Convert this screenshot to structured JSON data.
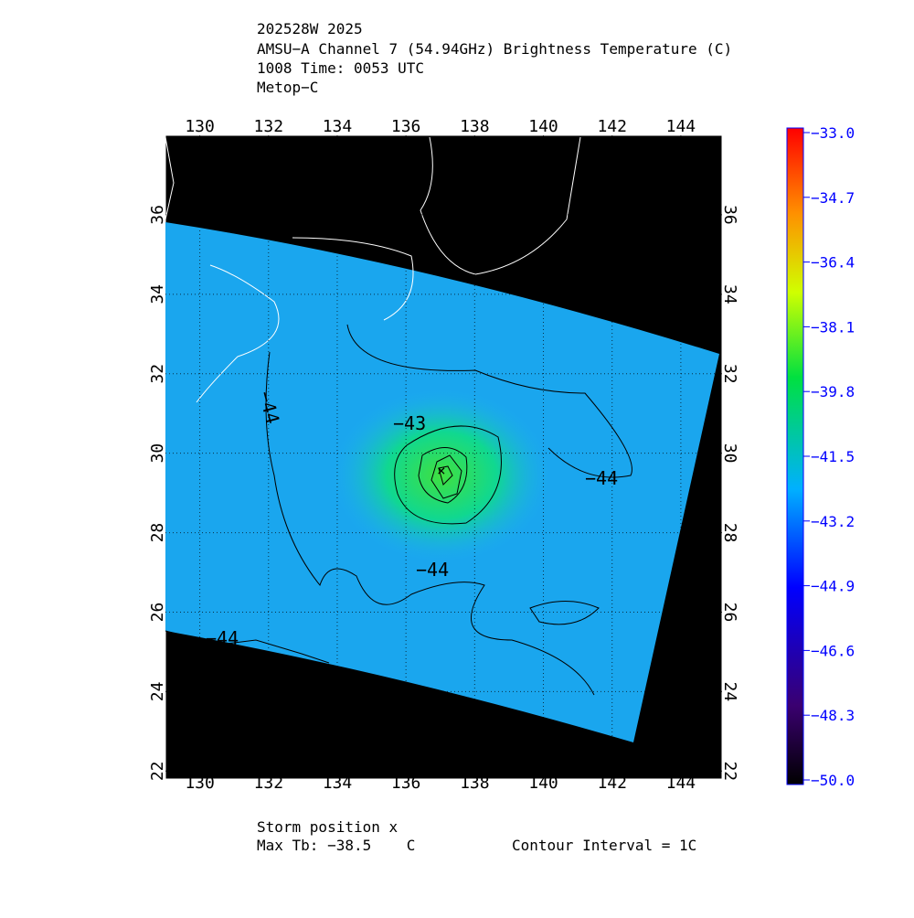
{
  "header": {
    "lines": [
      "202528W 2025",
      "AMSU−A Channel 7 (54.94GHz) Brightness Temperature (C)",
      "1008 Time: 0053 UTC",
      "Metop−C"
    ]
  },
  "map": {
    "lonlim": [
      129,
      145.2
    ],
    "latlim": [
      21.8,
      38
    ],
    "lonticks": [
      130,
      132,
      134,
      136,
      138,
      140,
      142,
      144
    ],
    "latticks": [
      22,
      24,
      26,
      28,
      30,
      32,
      34,
      36
    ],
    "contour_labels": [
      "−43",
      "−44",
      "−44",
      "−44",
      "−44"
    ]
  },
  "colorbar": {
    "lim": [
      -50,
      -33
    ],
    "ticks": [
      {
        "value": -33,
        "label": "−33.0"
      },
      {
        "value": -34.7,
        "label": "−34.7"
      },
      {
        "value": -36.4,
        "label": "−36.4"
      },
      {
        "value": -38.1,
        "label": "−38.1"
      },
      {
        "value": -39.8,
        "label": "−39.8"
      },
      {
        "value": -41.5,
        "label": "−41.5"
      },
      {
        "value": -43.2,
        "label": "−43.2"
      },
      {
        "value": -44.9,
        "label": "−44.9"
      },
      {
        "value": -46.6,
        "label": "−46.6"
      },
      {
        "value": -48.3,
        "label": "−48.3"
      },
      {
        "value": -50,
        "label": "−50.0"
      }
    ]
  },
  "footer": {
    "storm": "Storm position x",
    "max_tb": "Max Tb: −38.5    C",
    "interval": "Contour Interval = 1C"
  }
}
